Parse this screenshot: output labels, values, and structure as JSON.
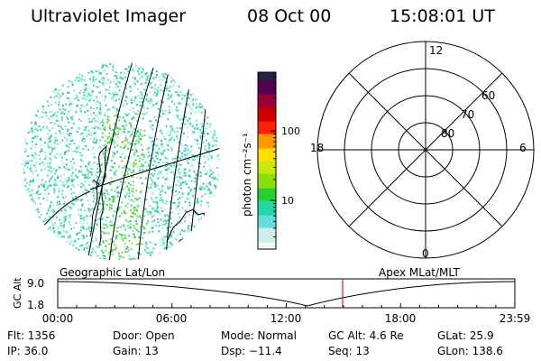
{
  "header": {
    "instrument": "Ultraviolet Imager",
    "date": "08 Oct 00",
    "time": "15:08:01 UT"
  },
  "colorbar": {
    "unit_label": "photon cm⁻²s⁻¹",
    "ticks": [
      "100",
      "10"
    ],
    "tick_values": [
      100,
      10
    ],
    "range": [
      2,
      700
    ],
    "scale": "log",
    "colors": [
      "#f0f8f8",
      "#cceeee",
      "#66dddd",
      "#22d8a8",
      "#22d030",
      "#88e010",
      "#c8e810",
      "#ffe000",
      "#ff9900",
      "#ff2200",
      "#cc0000",
      "#990033",
      "#550055",
      "#222244"
    ]
  },
  "polar_plot": {
    "clock_labels": [
      "12",
      "18",
      "6",
      "0"
    ],
    "lat_labels": [
      "60",
      "70",
      "80"
    ]
  },
  "image_panel": {
    "dot_colors": [
      "#40d8b8",
      "#70e4d4",
      "#a8ecec",
      "#2ccca0",
      "#5ee28c",
      "#30d050",
      "#88dc18"
    ]
  },
  "timeline": {
    "left_label": "Geographic Lat/Lon",
    "right_label": "Apex MLat/MLT",
    "y_axis_label": "GC Alt",
    "y_ticks": [
      "9.0",
      "1.8"
    ],
    "x_ticks": [
      "00:00",
      "06:00",
      "12:00",
      "18:00",
      "23:59"
    ],
    "current_time_color": "#dd2222"
  },
  "info": {
    "flt": "Flt: 1356",
    "ip": "IP: 36.0",
    "door": "Door: Open",
    "gain": "Gain: 13",
    "mode": "Mode: Normal",
    "dsp": "Dsp:  −11.4",
    "gc_alt": "GC Alt: 4.6 Re",
    "seq": "Seq: 13",
    "glat": "GLat:  25.9",
    "glon": "GLon: 138.6"
  }
}
